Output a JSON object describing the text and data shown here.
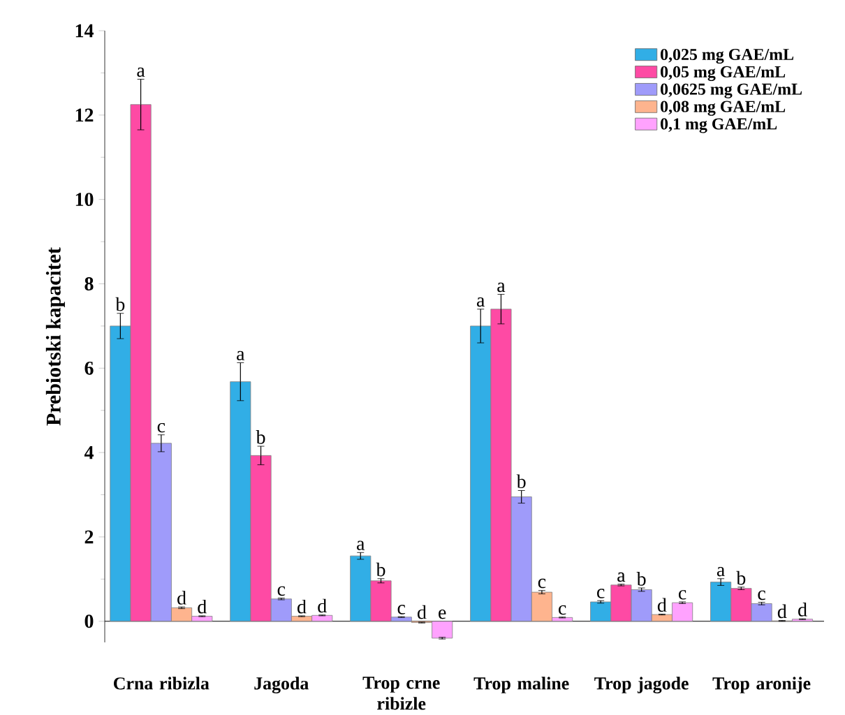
{
  "chart_data": {
    "type": "bar",
    "ylabel": "Prebiotski kapacitet",
    "categories": [
      "Crna ribizla",
      "Jagoda",
      "Trop crne ribizle",
      "Trop maline",
      "Trop jagode",
      "Trop aronije"
    ],
    "ylim": [
      -0.5,
      14
    ],
    "yticks": [
      0,
      2,
      4,
      6,
      8,
      10,
      12,
      14
    ],
    "legend": "top right",
    "series": [
      {
        "name": "0,025 mg GAE/mL",
        "color": "#31aee6",
        "values": [
          7.0,
          5.68,
          1.55,
          7.0,
          0.46,
          0.93
        ],
        "errors": [
          0.3,
          0.45,
          0.08,
          0.4,
          0.03,
          0.08
        ],
        "value_labels": [
          "b",
          "a",
          "a",
          "a",
          "c",
          "a"
        ]
      },
      {
        "name": "0,05 mg GAE/mL",
        "color": "#fe4aa4",
        "values": [
          12.25,
          3.93,
          0.96,
          7.4,
          0.86,
          0.78
        ],
        "errors": [
          0.6,
          0.22,
          0.05,
          0.35,
          0.02,
          0.03
        ],
        "value_labels": [
          "a",
          "b",
          "b",
          "a",
          "a",
          "b"
        ]
      },
      {
        "name": "0,0625 mg GAE/mL",
        "color": "#9f9bfa",
        "values": [
          4.22,
          0.53,
          0.1,
          2.95,
          0.75,
          0.42
        ],
        "errors": [
          0.2,
          0.02,
          0.01,
          0.15,
          0.04,
          0.03
        ],
        "value_labels": [
          "c",
          "c",
          "c",
          "b",
          "b",
          "c"
        ]
      },
      {
        "name": "0,08 mg GAE/mL",
        "color": "#feb48e",
        "values": [
          0.32,
          0.12,
          -0.03,
          0.69,
          0.16,
          0.01
        ],
        "errors": [
          0.02,
          0.01,
          0.01,
          0.04,
          0.01,
          0.01
        ],
        "value_labels": [
          "d",
          "d",
          "d",
          "c",
          "d",
          "d"
        ]
      },
      {
        "name": "0,1 mg GAE/mL",
        "color": "#ffa2fe",
        "values": [
          0.12,
          0.14,
          -0.4,
          0.09,
          0.44,
          0.05
        ],
        "errors": [
          0.01,
          0.01,
          0.02,
          0.01,
          0.02,
          0.01
        ],
        "value_labels": [
          "d",
          "d",
          "e",
          "c",
          "c",
          "d"
        ]
      }
    ]
  }
}
